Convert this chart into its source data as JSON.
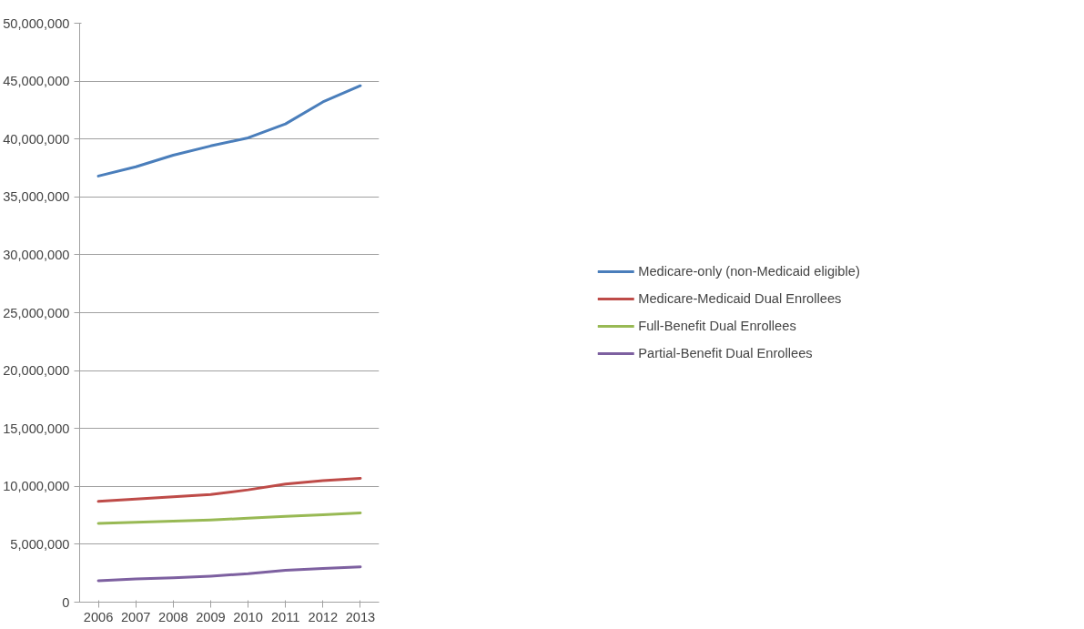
{
  "chart_data": {
    "type": "line",
    "categories": [
      "2006",
      "2007",
      "2008",
      "2009",
      "2010",
      "2011",
      "2012",
      "2013"
    ],
    "series": [
      {
        "name": "Medicare-only (non-Medicaid eligible)",
        "color": "#4a7ebb",
        "values": [
          36800000,
          37600000,
          38600000,
          39400000,
          40100000,
          41300000,
          43200000,
          44600000
        ]
      },
      {
        "name": "Medicare-Medicaid Dual Enrollees",
        "color": "#be4b48",
        "values": [
          8700000,
          8900000,
          9100000,
          9300000,
          9700000,
          10200000,
          10500000,
          10700000
        ]
      },
      {
        "name": "Full-Benefit Dual Enrollees",
        "color": "#98b954",
        "values": [
          6800000,
          6900000,
          7000000,
          7100000,
          7250000,
          7400000,
          7550000,
          7700000
        ]
      },
      {
        "name": "Partial-Benefit Dual Enrollees",
        "color": "#7d60a0",
        "values": [
          1850000,
          2000000,
          2100000,
          2250000,
          2450000,
          2750000,
          2900000,
          3050000
        ]
      }
    ],
    "ylim": [
      0,
      50000000
    ],
    "yticks": [
      {
        "value": 0,
        "label": "0"
      },
      {
        "value": 5000000,
        "label": "5,000,000"
      },
      {
        "value": 10000000,
        "label": "10,000,000"
      },
      {
        "value": 15000000,
        "label": "15,000,000"
      },
      {
        "value": 20000000,
        "label": "20,000,000"
      },
      {
        "value": 25000000,
        "label": "25,000,000"
      },
      {
        "value": 30000000,
        "label": "30,000,000"
      },
      {
        "value": 35000000,
        "label": "35,000,000"
      },
      {
        "value": 40000000,
        "label": "40,000,000"
      },
      {
        "value": 45000000,
        "label": "45,000,000"
      },
      {
        "value": 50000000,
        "label": "50,000,000"
      }
    ],
    "grid": "y",
    "legend": "right",
    "marker": "none",
    "line_style": "solid"
  }
}
